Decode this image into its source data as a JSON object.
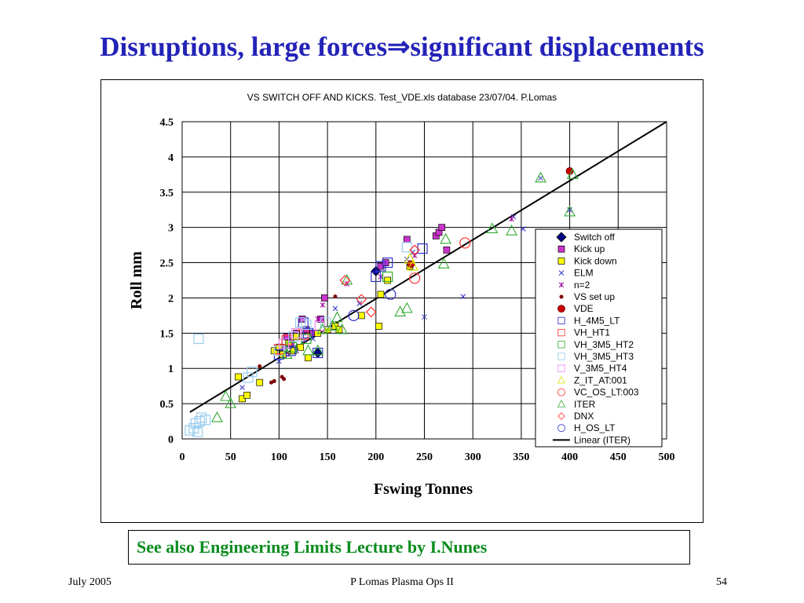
{
  "slide": {
    "title": "Disruptions, large forces⇒significant displacements",
    "note": "See also Engineering Limits Lecture by I.Nunes"
  },
  "footer": {
    "left": "July 2005",
    "center": "P Lomas  Plasma Ops II",
    "right": "54"
  },
  "colors": {
    "title": "#2323b8",
    "note": "#0a8c1e"
  },
  "chart_data": {
    "type": "scatter",
    "title": "VS SWITCH OFF AND KICKS. Test_VDE.xls database 23/07/04.    P.Lomas",
    "xlabel": "Fswing Tonnes",
    "ylabel": "Roll mm",
    "xlim": [
      0,
      500
    ],
    "ylim": [
      0,
      4.5
    ],
    "xticks": [
      "0",
      "50",
      "100",
      "150",
      "200",
      "250",
      "300",
      "350",
      "400",
      "450",
      "500"
    ],
    "yticks": [
      "0",
      "0.5",
      "1",
      "1.5",
      "2",
      "2.5",
      "3",
      "3.5",
      "4",
      "4.5"
    ],
    "grid": true,
    "legend_position": "right",
    "series": [
      {
        "name": "Switch off",
        "marker": "diamond-filled",
        "color": "#000080",
        "points": [
          [
            140,
            1.22
          ],
          [
            200,
            2.38
          ]
        ]
      },
      {
        "name": "Kick up",
        "marker": "square-filled",
        "color": "#cc33cc",
        "points": [
          [
            102,
            1.3
          ],
          [
            108,
            1.45
          ],
          [
            112,
            1.35
          ],
          [
            118,
            1.5
          ],
          [
            124,
            1.7
          ],
          [
            128,
            1.55
          ],
          [
            135,
            1.5
          ],
          [
            143,
            1.7
          ],
          [
            147,
            2.0
          ],
          [
            205,
            2.45
          ],
          [
            210,
            2.5
          ],
          [
            232,
            2.83
          ],
          [
            262,
            2.88
          ],
          [
            265,
            2.93
          ],
          [
            268,
            3.0
          ],
          [
            273,
            2.68
          ]
        ]
      },
      {
        "name": "Kick down",
        "marker": "square-filled",
        "color": "#ffff00",
        "points": [
          [
            58,
            0.88
          ],
          [
            62,
            0.57
          ],
          [
            67,
            0.62
          ],
          [
            80,
            0.8
          ],
          [
            95,
            1.25
          ],
          [
            100,
            1.3
          ],
          [
            104,
            1.2
          ],
          [
            110,
            1.35
          ],
          [
            115,
            1.25
          ],
          [
            118,
            1.45
          ],
          [
            122,
            1.3
          ],
          [
            130,
            1.15
          ],
          [
            140,
            1.5
          ],
          [
            150,
            1.55
          ],
          [
            158,
            1.6
          ],
          [
            162,
            1.55
          ],
          [
            185,
            1.75
          ],
          [
            203,
            1.6
          ],
          [
            205,
            2.05
          ],
          [
            212,
            2.25
          ],
          [
            235,
            2.45
          ]
        ]
      },
      {
        "name": "ELM",
        "marker": "x",
        "color": "#3333cc",
        "points": [
          [
            62,
            0.73
          ],
          [
            100,
            1.1
          ],
          [
            118,
            1.25
          ],
          [
            126,
            1.4
          ],
          [
            135,
            1.42
          ],
          [
            158,
            1.85
          ],
          [
            183,
            1.92
          ],
          [
            232,
            2.55
          ],
          [
            238,
            2.65
          ],
          [
            250,
            1.73
          ],
          [
            290,
            2.02
          ],
          [
            342,
            3.15
          ],
          [
            352,
            2.98
          ],
          [
            370,
            3.7
          ],
          [
            400,
            3.25
          ]
        ]
      },
      {
        "name": "n=2",
        "marker": "star",
        "color": "#990099",
        "points": [
          [
            110,
            1.2
          ],
          [
            125,
            1.5
          ],
          [
            140,
            1.7
          ],
          [
            145,
            1.9
          ],
          [
            170,
            2.2
          ],
          [
            205,
            2.3
          ],
          [
            240,
            2.6
          ],
          [
            340,
            3.12
          ]
        ]
      },
      {
        "name": "VS set up",
        "marker": "dot-small",
        "color": "#800000",
        "points": [
          [
            80,
            1.03
          ],
          [
            92,
            0.8
          ],
          [
            95,
            0.82
          ],
          [
            103,
            0.88
          ],
          [
            105,
            0.85
          ],
          [
            158,
            2.02
          ]
        ]
      },
      {
        "name": "VDE",
        "marker": "circle-filled",
        "color": "#cc0000",
        "points": [
          [
            236,
            2.48
          ],
          [
            400,
            3.8
          ]
        ]
      },
      {
        "name": "H_4M5_LT",
        "marker": "square-open",
        "color": "#3333cc",
        "points": [
          [
            100,
            1.2
          ],
          [
            108,
            1.35
          ],
          [
            112,
            1.25
          ],
          [
            125,
            1.65
          ],
          [
            130,
            1.5
          ],
          [
            140,
            1.22
          ],
          [
            200,
            2.3
          ],
          [
            205,
            2.45
          ],
          [
            212,
            2.5
          ],
          [
            248,
            2.7
          ]
        ]
      },
      {
        "name": "VH_HT1",
        "marker": "square-open",
        "color": "#ff3333",
        "points": [
          [
            100,
            1.27
          ],
          [
            108,
            1.4
          ],
          [
            125,
            1.48
          ]
        ]
      },
      {
        "name": "VH_3M5_HT2",
        "marker": "square-open",
        "color": "#33aa33",
        "points": [
          [
            113,
            1.3
          ],
          [
            128,
            1.42
          ],
          [
            212,
            2.3
          ]
        ]
      },
      {
        "name": "VH_3M5_HT3",
        "marker": "square-open",
        "color": "#99ccee",
        "points": [
          [
            8,
            0.12
          ],
          [
            12,
            0.15
          ],
          [
            14,
            0.22
          ],
          [
            16,
            0.1
          ],
          [
            18,
            0.25
          ],
          [
            20,
            0.3
          ],
          [
            24,
            0.27
          ],
          [
            17,
            1.42
          ],
          [
            68,
            0.87
          ],
          [
            72,
            0.95
          ],
          [
            100,
            1.25
          ],
          [
            115,
            1.45
          ],
          [
            122,
            1.65
          ],
          [
            128,
            1.62
          ],
          [
            148,
            1.65
          ],
          [
            232,
            2.72
          ]
        ]
      },
      {
        "name": "V_3M5_HT4",
        "marker": "square-open",
        "color": "#ee88ee",
        "points": [
          [
            105,
            1.35
          ],
          [
            118,
            1.5
          ],
          [
            142,
            1.6
          ]
        ]
      },
      {
        "name": "Z_IT_AT:001",
        "marker": "triangle-open",
        "color": "#dddd00",
        "points": [
          [
            235,
            2.55
          ],
          [
            238,
            2.45
          ]
        ]
      },
      {
        "name": "VC_OS_LT:003",
        "marker": "circle-open",
        "color": "#ff3333",
        "points": [
          [
            240,
            2.28
          ],
          [
            292,
            2.78
          ]
        ]
      },
      {
        "name": "ITER",
        "marker": "triangle-open",
        "color": "#33aa33",
        "points": [
          [
            36,
            0.3
          ],
          [
            45,
            0.6
          ],
          [
            50,
            0.5
          ],
          [
            108,
            1.2
          ],
          [
            130,
            1.25
          ],
          [
            140,
            1.25
          ],
          [
            145,
            1.55
          ],
          [
            155,
            1.6
          ],
          [
            160,
            1.72
          ],
          [
            165,
            1.55
          ],
          [
            170,
            2.25
          ],
          [
            225,
            1.8
          ],
          [
            232,
            1.85
          ],
          [
            270,
            2.48
          ],
          [
            272,
            2.83
          ],
          [
            320,
            2.98
          ],
          [
            340,
            2.95
          ],
          [
            370,
            3.7
          ],
          [
            400,
            3.22
          ],
          [
            403,
            3.75
          ]
        ]
      },
      {
        "name": "DNX",
        "marker": "diamond-open",
        "color": "#ff3333",
        "points": [
          [
            168,
            2.25
          ],
          [
            185,
            1.98
          ],
          [
            195,
            1.8
          ],
          [
            240,
            2.68
          ]
        ]
      },
      {
        "name": "H_OS_LT",
        "marker": "circle-open",
        "color": "#3333cc",
        "points": [
          [
            177,
            1.75
          ],
          [
            215,
            2.05
          ]
        ]
      }
    ],
    "fit_line": {
      "name": "Linear (ITER)",
      "color": "#000000",
      "points": [
        [
          8,
          0.38
        ],
        [
          500,
          4.5
        ]
      ]
    }
  }
}
